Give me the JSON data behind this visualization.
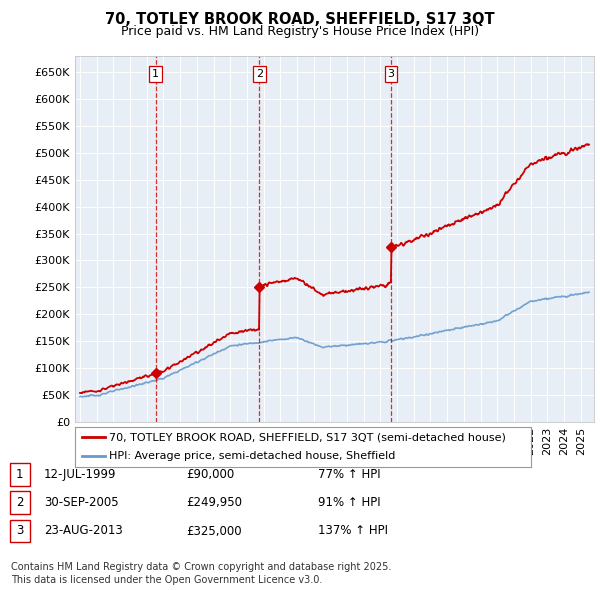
{
  "title": "70, TOTLEY BROOK ROAD, SHEFFIELD, S17 3QT",
  "subtitle": "Price paid vs. HM Land Registry's House Price Index (HPI)",
  "ylim": [
    0,
    680000
  ],
  "yticks": [
    0,
    50000,
    100000,
    150000,
    200000,
    250000,
    300000,
    350000,
    400000,
    450000,
    500000,
    550000,
    600000,
    650000
  ],
  "xlim_start": 1994.7,
  "xlim_end": 2025.8,
  "background_color": "#ffffff",
  "chart_bg_color": "#e8eef5",
  "grid_color": "#ffffff",
  "sale_color": "#cc0000",
  "hpi_color": "#6699cc",
  "transactions": [
    {
      "num": 1,
      "date_num": 1999.53,
      "price": 90000,
      "label": "12-JUL-1999",
      "price_str": "£90,000",
      "pct": "77% ↑ HPI"
    },
    {
      "num": 2,
      "date_num": 2005.75,
      "price": 249950,
      "label": "30-SEP-2005",
      "price_str": "£249,950",
      "pct": "91% ↑ HPI"
    },
    {
      "num": 3,
      "date_num": 2013.64,
      "price": 325000,
      "label": "23-AUG-2013",
      "price_str": "£325,000",
      "pct": "137% ↑ HPI"
    }
  ],
  "legend_sale_label": "70, TOTLEY BROOK ROAD, SHEFFIELD, S17 3QT (semi-detached house)",
  "legend_hpi_label": "HPI: Average price, semi-detached house, Sheffield",
  "footer": "Contains HM Land Registry data © Crown copyright and database right 2025.\nThis data is licensed under the Open Government Licence v3.0.",
  "title_fontsize": 10.5,
  "subtitle_fontsize": 9,
  "tick_fontsize": 8,
  "legend_fontsize": 8,
  "footer_fontsize": 7,
  "table_fontsize": 8.5
}
